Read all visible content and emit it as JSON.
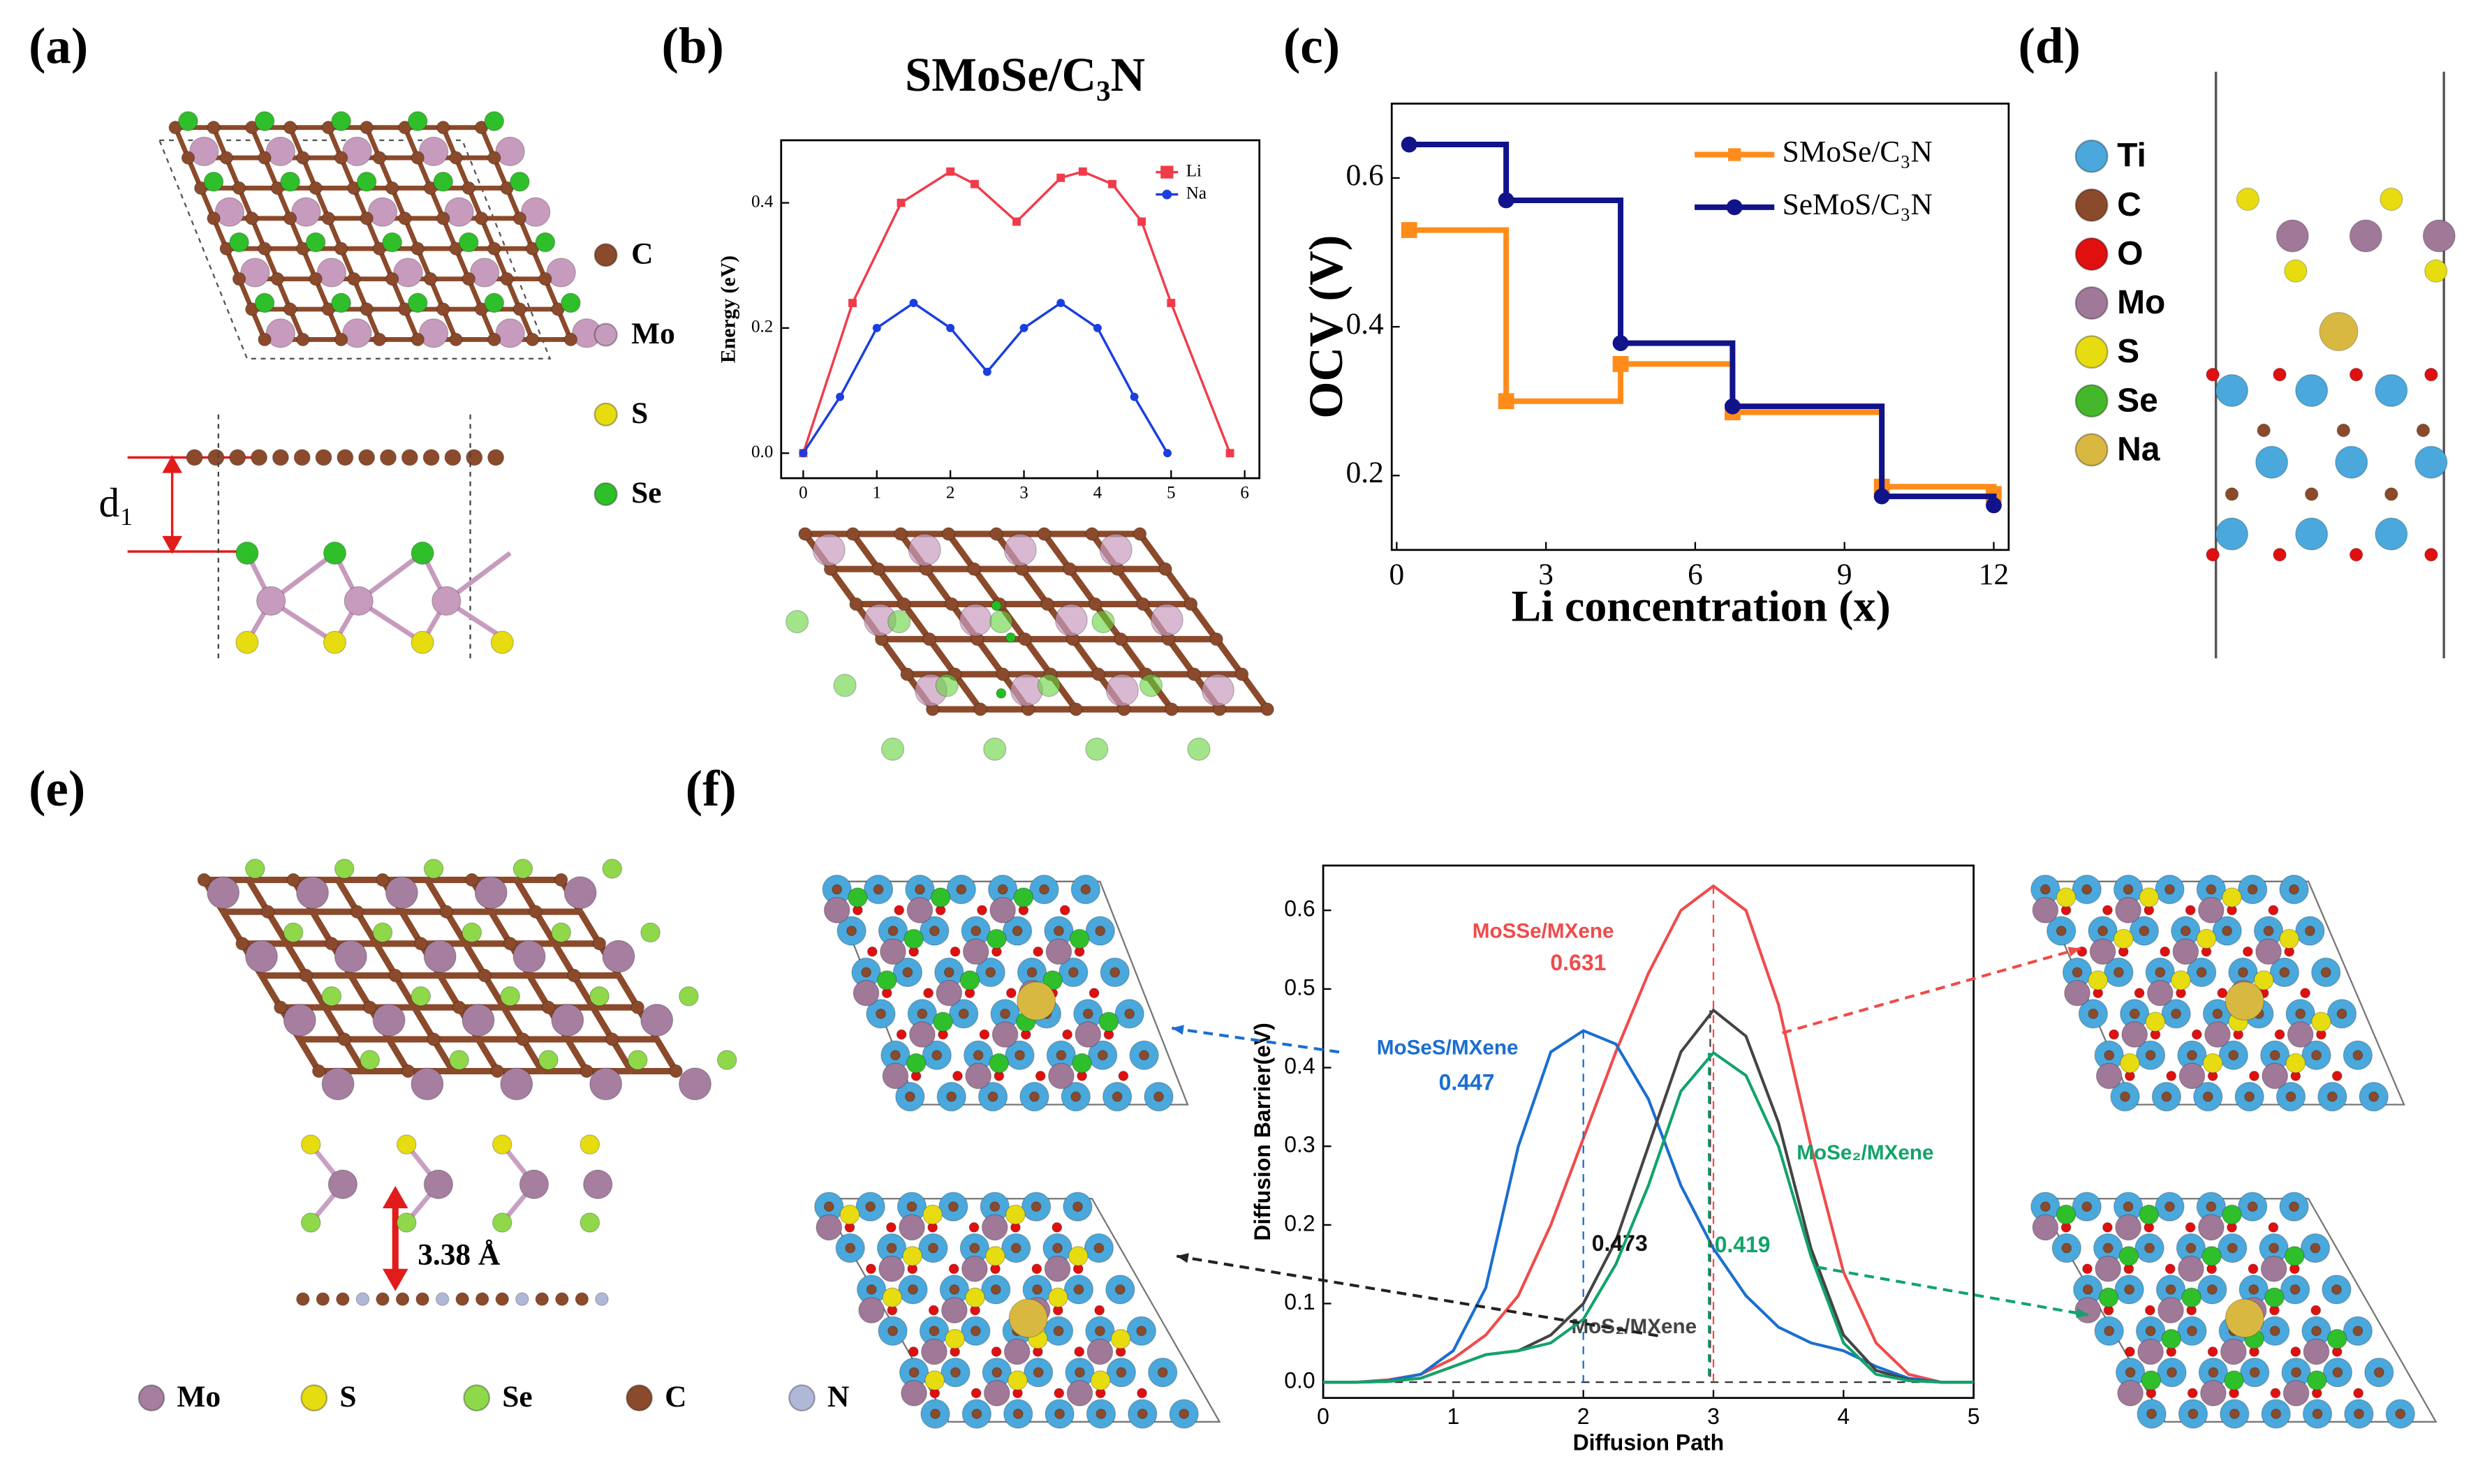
{
  "panel_labels": [
    "(a)",
    "(b)",
    "(c)",
    "(d)",
    "(e)",
    "(f)"
  ],
  "annotations": {
    "d1": "d₁",
    "interlayer": "3.38 Å"
  },
  "structure_legends": {
    "a": [
      {
        "label": "C",
        "color": "#8b4a2b"
      },
      {
        "label": "Mo",
        "color": "#c79bbd"
      },
      {
        "label": "S",
        "color": "#e6dc10"
      },
      {
        "label": "Se",
        "color": "#2fbf2a"
      }
    ],
    "d": [
      {
        "label": "Ti",
        "color": "#4aa8dc"
      },
      {
        "label": "C",
        "color": "#8b4a2b"
      },
      {
        "label": "O",
        "color": "#e01010"
      },
      {
        "label": "Mo",
        "color": "#a07898"
      },
      {
        "label": "S",
        "color": "#e6dc10"
      },
      {
        "label": "Se",
        "color": "#44b82a"
      },
      {
        "label": "Na",
        "color": "#d8b840"
      }
    ],
    "e": [
      {
        "label": "Mo",
        "color": "#a67ea0"
      },
      {
        "label": "S",
        "color": "#e6dc10"
      },
      {
        "label": "Se",
        "color": "#8ed84a"
      },
      {
        "label": "C",
        "color": "#8b4a2b"
      },
      {
        "label": "N",
        "color": "#b0b8d8"
      }
    ]
  },
  "chart_data": [
    {
      "type": "line",
      "title": "SMoSe/C₃N",
      "y_label": "Energy (eV)",
      "markers": true,
      "legend": "upper right",
      "xlim": [
        -0.3,
        6.2
      ],
      "ylim": [
        -0.04,
        0.5
      ],
      "xticks": [
        0,
        1,
        2,
        3,
        4,
        5,
        6
      ],
      "yticks": [
        {
          "value": 0,
          "label": "0.0"
        },
        0.2,
        0.4
      ],
      "series": [
        {
          "name": "Li",
          "color": "#f03c4a",
          "marker": "square",
          "x": [
            0,
            0.67,
            1.33,
            2.0,
            2.33,
            2.9,
            3.5,
            3.8,
            4.2,
            4.6,
            5.0,
            5.8
          ],
          "values": [
            0.0,
            0.24,
            0.4,
            0.45,
            0.43,
            0.37,
            0.44,
            0.45,
            0.43,
            0.37,
            0.24,
            0.0
          ]
        },
        {
          "name": "Na",
          "color": "#1a3ee0",
          "marker": "circle",
          "x": [
            0,
            0.5,
            1.0,
            1.5,
            2.0,
            2.5,
            3.0,
            3.5,
            4.0,
            4.5,
            4.95
          ],
          "values": [
            0.0,
            0.09,
            0.2,
            0.24,
            0.2,
            0.13,
            0.2,
            0.24,
            0.2,
            0.09,
            0.0
          ]
        }
      ]
    },
    {
      "type": "line",
      "step": "post",
      "x_label": "Li concentration (x)",
      "y_label": "OCV (V)",
      "markers": true,
      "legend": "upper right",
      "xlim": [
        -0.1,
        12.3
      ],
      "ylim": [
        0.1,
        0.7
      ],
      "xticks": [
        0,
        3,
        6,
        9,
        12
      ],
      "yticks": [
        0.2,
        0.4,
        0.6
      ],
      "series": [
        {
          "name": "SMoSe/C₃N",
          "color": "#ff8c1a",
          "marker": "square",
          "x": [
            0.25,
            2.2,
            4.5,
            6.75,
            9.75,
            12
          ],
          "values": [
            0.53,
            0.3,
            0.35,
            0.285,
            0.185,
            0.175
          ]
        },
        {
          "name": "SeMoS/C₃N",
          "color": "#10138a",
          "marker": "circle",
          "x": [
            0.25,
            2.2,
            4.5,
            6.75,
            9.75,
            12
          ],
          "values": [
            0.645,
            0.57,
            0.378,
            0.293,
            0.172,
            0.16
          ]
        }
      ]
    },
    {
      "type": "line",
      "x_label": "Diffusion Path",
      "y_label": "Diffusion Barrier(eV)",
      "markers": false,
      "xlim": [
        0,
        5
      ],
      "ylim": [
        -0.02,
        0.657
      ],
      "xticks": [
        0,
        1,
        2,
        3,
        4,
        5
      ],
      "yticks": [
        {
          "value": 0,
          "label": "0.0"
        },
        0.1,
        0.2,
        0.3,
        0.4,
        0.5,
        0.6
      ],
      "x": [
        0,
        0.25,
        0.5,
        0.75,
        1,
        1.25,
        1.5,
        1.75,
        2,
        2.25,
        2.5,
        2.75,
        3,
        3.25,
        3.5,
        3.75,
        4,
        4.25,
        4.5,
        4.75,
        5
      ],
      "series": [
        {
          "name": "MoSSe/MXene",
          "color": "#f04b4b",
          "peak_label": "0.631",
          "values": [
            0,
            0,
            0.003,
            0.01,
            0.03,
            0.06,
            0.11,
            0.2,
            0.31,
            0.42,
            0.52,
            0.6,
            0.631,
            0.6,
            0.48,
            0.3,
            0.14,
            0.05,
            0.01,
            0,
            0
          ]
        },
        {
          "name": "MoSeS/MXene",
          "color": "#1a6ed0",
          "peak_label": "0.447",
          "values": [
            0,
            0,
            0.002,
            0.01,
            0.04,
            0.12,
            0.3,
            0.42,
            0.447,
            0.43,
            0.36,
            0.25,
            0.17,
            0.11,
            0.07,
            0.05,
            0.04,
            0.02,
            0.005,
            0,
            0
          ]
        },
        {
          "name": "MoS₂/MXene",
          "color": "#444444",
          "peak_label": "0.473",
          "values": [
            0,
            0,
            0.001,
            0.005,
            0.02,
            0.035,
            0.04,
            0.06,
            0.1,
            0.18,
            0.3,
            0.42,
            0.473,
            0.44,
            0.33,
            0.17,
            0.06,
            0.015,
            0.003,
            0,
            0
          ]
        },
        {
          "name": "MoSe₂/MXene",
          "color": "#12a36a",
          "peak_label": "0.419",
          "values": [
            0,
            0,
            0.001,
            0.005,
            0.02,
            0.035,
            0.04,
            0.05,
            0.08,
            0.15,
            0.25,
            0.37,
            0.419,
            0.39,
            0.3,
            0.16,
            0.05,
            0.01,
            0.002,
            0,
            0
          ]
        }
      ]
    }
  ]
}
